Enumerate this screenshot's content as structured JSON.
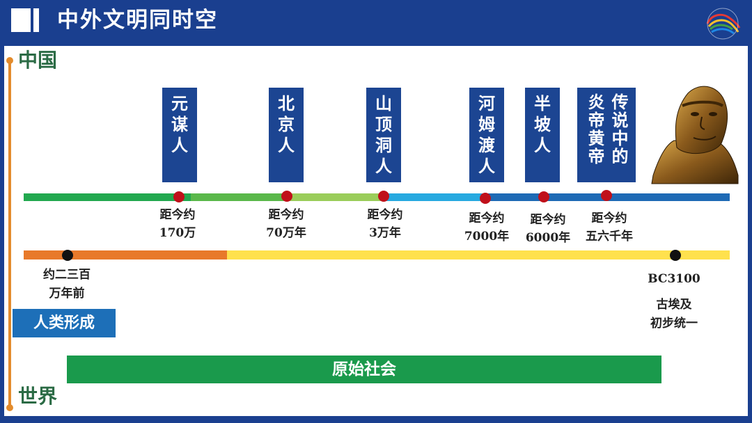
{
  "header": {
    "title": "中外文明同时空"
  },
  "labels": {
    "top": "中国",
    "bottom": "世界"
  },
  "china_events": [
    {
      "lines": [
        "元",
        "谋",
        "人"
      ],
      "dist": [
        "距今约",
        "170万"
      ]
    },
    {
      "lines": [
        "北",
        "京",
        "人"
      ],
      "dist": [
        "距今约",
        "70万年"
      ]
    },
    {
      "lines": [
        "山",
        "顶",
        "洞",
        "人"
      ],
      "dist": [
        "距今约",
        "3万年"
      ]
    },
    {
      "lines": [
        "河",
        "姆",
        "渡",
        "人"
      ],
      "dist": [
        "距今约",
        "7000年"
      ]
    },
    {
      "lines": [
        "半",
        "坡",
        "人"
      ],
      "dist": [
        "距今约",
        "6000年"
      ]
    },
    {
      "lines": [
        "传说中的",
        "炎帝黄帝"
      ],
      "dist": [
        "距今约",
        "五六千年"
      ]
    }
  ],
  "world_events": [
    {
      "lines": [
        "约二三百",
        "万年前"
      ]
    },
    {
      "lines": [
        "BC3100",
        "",
        "古埃及",
        "初步统一"
      ]
    }
  ],
  "human_formation": "人类形成",
  "primitive_society": "原始社会",
  "colors": {
    "header_bg": "#1a3f8f",
    "event_box": "#1c4592",
    "primitive_bar": "#1a9a4c",
    "human_box": "#1d6fb8",
    "dot_red": "#c0101a",
    "dot_black": "#111111",
    "label_green": "#2b6b45",
    "axis_orange": "#e38b2c"
  },
  "images": {
    "bust": "early-human-bust"
  }
}
